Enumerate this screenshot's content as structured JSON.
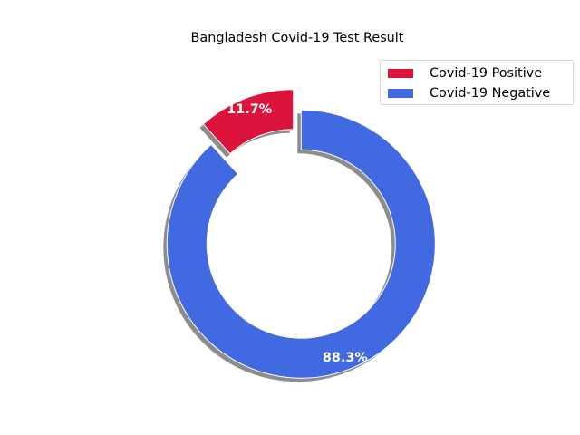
{
  "chart_data": {
    "type": "pie",
    "style": "donut",
    "title": "Bangladesh Covid-19 Test Result",
    "categories": [
      "Covid-19 Positive",
      "Covid-19 Negative"
    ],
    "values": [
      11.7,
      88.3
    ],
    "value_labels": [
      "11.7%",
      "88.3%"
    ],
    "colors": [
      "#dc143c",
      "#4169e1"
    ],
    "exploded": [
      true,
      true
    ],
    "shadow": true,
    "legend_position": "top-right"
  }
}
